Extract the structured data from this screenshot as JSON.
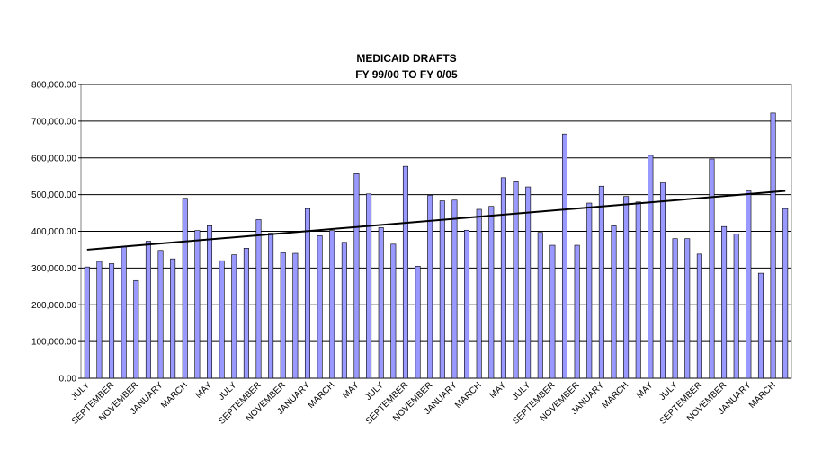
{
  "chart_data": {
    "type": "bar",
    "title": "MEDICAID DRAFTS",
    "subtitle": "FY 99/00 TO FY 0/05",
    "categories": [
      "JULY",
      null,
      "SEPTEMBER",
      null,
      "NOVEMBER",
      null,
      "JANUARY",
      null,
      "MARCH",
      null,
      "MAY",
      null,
      "JULY",
      null,
      "SEPTEMBER",
      null,
      "NOVEMBER",
      null,
      "JANUARY",
      null,
      "MARCH",
      null,
      "MAY",
      null,
      "JULY",
      null,
      "SEPTEMBER",
      null,
      "NOVEMBER",
      null,
      "JANUARY",
      null,
      "MARCH",
      null,
      "MAY",
      null,
      "JULY",
      null,
      "SEPTEMBER",
      null,
      "NOVEMBER",
      null,
      "JANUARY",
      null,
      "MARCH",
      null,
      "MAY",
      null,
      "JULY",
      null,
      "SEPTEMBER",
      null,
      "NOVEMBER",
      null,
      "JANUARY",
      null,
      "MARCH",
      null
    ],
    "values": [
      303000,
      318000,
      312000,
      358000,
      266000,
      373000,
      348000,
      325000,
      490000,
      402000,
      415000,
      320000,
      336000,
      354000,
      432000,
      395000,
      342000,
      340000,
      462000,
      388000,
      402000,
      370000,
      557000,
      502000,
      410000,
      365000,
      577000,
      305000,
      498000,
      483000,
      485000,
      403000,
      460000,
      468000,
      546000,
      535000,
      521000,
      397000,
      362000,
      665000,
      362000,
      477000,
      523000,
      415000,
      495000,
      480000,
      607000,
      532000,
      380000,
      380000,
      338000,
      597000,
      413000,
      393000,
      510000,
      286000,
      722000,
      462000
    ],
    "color": "#9999ff",
    "trendline": [
      350000,
      510000
    ],
    "ylim": [
      0,
      800000
    ],
    "yticks": [
      {
        "value": 0,
        "label": "0.00"
      },
      {
        "value": 100000,
        "label": "100,000.00"
      },
      {
        "value": 200000,
        "label": "200,000.00"
      },
      {
        "value": 300000,
        "label": "300,000.00"
      },
      {
        "value": 400000,
        "label": "400,000.00"
      },
      {
        "value": 500000,
        "label": "500,000.00"
      },
      {
        "value": 600000,
        "label": "600,000.00"
      },
      {
        "value": 700000,
        "label": "700,000.00"
      },
      {
        "value": 800000,
        "label": "800,000.00"
      }
    ],
    "grid": true
  }
}
